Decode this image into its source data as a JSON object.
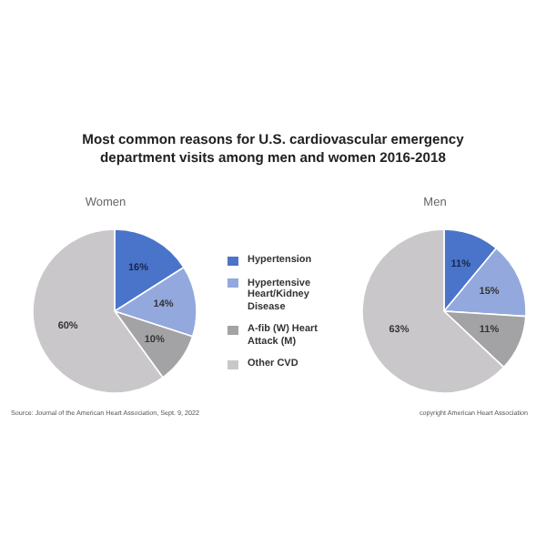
{
  "chart_data": [
    {
      "type": "pie",
      "title": "Most common reasons for U.S. cardiovascular emergency department visits among men and women 2016-2018",
      "subtitle": "Women",
      "categories": [
        "Hypertension",
        "Hypertensive Heart/Kidney Disease",
        "A-fib (W) Heart Attack (M)",
        "Other CVD"
      ],
      "values": [
        16,
        14,
        10,
        60
      ],
      "value_labels": [
        "16%",
        "14%",
        "10%",
        "60%"
      ],
      "colors": [
        "#4a74c9",
        "#93a8dd",
        "#a3a3a5",
        "#c9c7ca"
      ],
      "legend": "right",
      "annotations": [
        "Source: Journal of the American Heart Association, Sept. 9, 2022"
      ]
    },
    {
      "type": "pie",
      "title": "Men",
      "categories": [
        null,
        null,
        null,
        null
      ],
      "values": [
        11,
        15,
        11,
        63
      ],
      "value_labels": [
        "11%",
        "15%",
        "11%",
        "63%"
      ],
      "colors": [
        "#4a74c9",
        "#93a8dd",
        "#a3a3a5",
        "#c9c7ca"
      ],
      "annotations": [
        "copyright American Heart Association"
      ]
    }
  ]
}
